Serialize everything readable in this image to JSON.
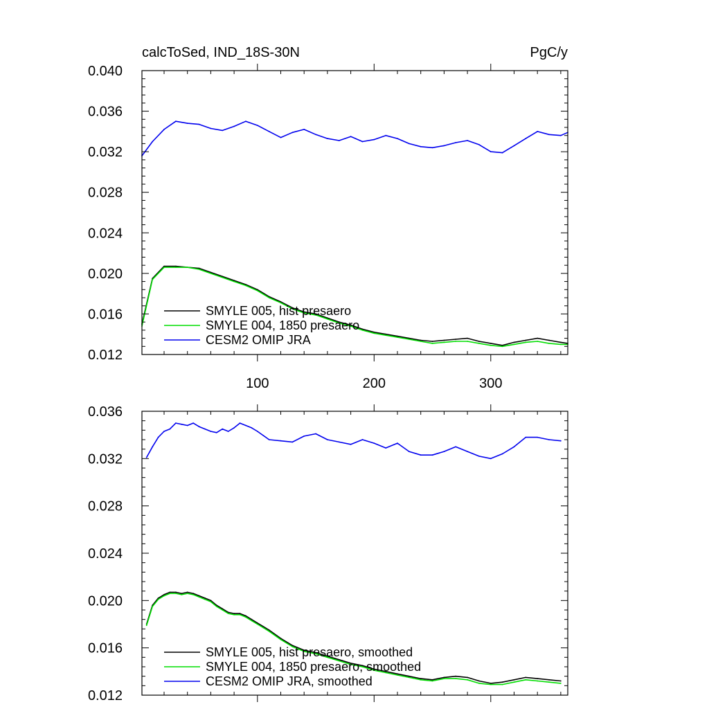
{
  "header": {
    "left_title": "calcToSed, IND_18S-30N",
    "right_title": "PgC/y"
  },
  "colors": {
    "hist": "#000000",
    "p1850": "#00dd00",
    "omip": "#0000ee"
  },
  "chart_data": [
    {
      "type": "line",
      "panel": "raw",
      "xlim": [
        1,
        366
      ],
      "ylim": [
        0.012,
        0.04
      ],
      "x_ticks": [
        100,
        200,
        300
      ],
      "x_tick_labels": [
        "100",
        "200",
        "300"
      ],
      "y_ticks": [
        0.012,
        0.016,
        0.02,
        0.024,
        0.028,
        0.032,
        0.036,
        0.04
      ],
      "y_tick_labels": [
        "0.012",
        "0.016",
        "0.020",
        "0.024",
        "0.028",
        "0.032",
        "0.036",
        "0.040"
      ],
      "grid": false,
      "legend_position": "bottom-left",
      "series": [
        {
          "name": "SMYLE 005, hist presaero",
          "color_key": "hist",
          "x": [
            1,
            10,
            20,
            30,
            40,
            50,
            60,
            70,
            80,
            90,
            100,
            110,
            120,
            130,
            140,
            150,
            160,
            170,
            180,
            190,
            200,
            210,
            220,
            230,
            240,
            250,
            260,
            270,
            280,
            290,
            300,
            310,
            320,
            330,
            340,
            350,
            360,
            366
          ],
          "y": [
            0.015,
            0.0195,
            0.0207,
            0.0207,
            0.0206,
            0.0205,
            0.0201,
            0.0197,
            0.0193,
            0.0189,
            0.0184,
            0.0177,
            0.0172,
            0.0166,
            0.0162,
            0.016,
            0.0156,
            0.0152,
            0.0149,
            0.0145,
            0.0142,
            0.014,
            0.0138,
            0.0136,
            0.0134,
            0.0133,
            0.0134,
            0.0135,
            0.0136,
            0.0133,
            0.0131,
            0.0129,
            0.0132,
            0.0134,
            0.0136,
            0.0134,
            0.0132,
            0.0131
          ]
        },
        {
          "name": "SMYLE 004, 1850 presaero",
          "color_key": "p1850",
          "x": [
            1,
            10,
            20,
            30,
            40,
            50,
            60,
            70,
            80,
            90,
            100,
            110,
            120,
            130,
            140,
            150,
            160,
            170,
            180,
            190,
            200,
            210,
            220,
            230,
            240,
            250,
            260,
            270,
            280,
            290,
            300,
            310,
            320,
            330,
            340,
            350,
            360,
            366
          ],
          "y": [
            0.0148,
            0.0194,
            0.0206,
            0.0206,
            0.0206,
            0.0204,
            0.02,
            0.0196,
            0.0192,
            0.0188,
            0.0183,
            0.0176,
            0.0171,
            0.0165,
            0.0161,
            0.0159,
            0.0155,
            0.0151,
            0.0148,
            0.0144,
            0.0141,
            0.0139,
            0.0137,
            0.0135,
            0.0133,
            0.0131,
            0.0132,
            0.0133,
            0.0133,
            0.0131,
            0.0129,
            0.0128,
            0.013,
            0.0132,
            0.0133,
            0.0131,
            0.013,
            0.013
          ]
        },
        {
          "name": "CESM2 OMIP JRA",
          "color_key": "omip",
          "x": [
            1,
            10,
            20,
            30,
            40,
            50,
            60,
            70,
            80,
            90,
            100,
            110,
            120,
            130,
            140,
            150,
            160,
            170,
            180,
            190,
            200,
            210,
            220,
            230,
            240,
            250,
            260,
            270,
            280,
            290,
            300,
            310,
            320,
            330,
            340,
            350,
            360,
            366
          ],
          "y": [
            0.0316,
            0.033,
            0.0342,
            0.035,
            0.0348,
            0.0347,
            0.0343,
            0.0341,
            0.0345,
            0.035,
            0.0346,
            0.034,
            0.0334,
            0.0339,
            0.0342,
            0.0337,
            0.0333,
            0.0331,
            0.0335,
            0.033,
            0.0332,
            0.0336,
            0.0333,
            0.0328,
            0.0325,
            0.0324,
            0.0326,
            0.0329,
            0.0331,
            0.0327,
            0.032,
            0.0319,
            0.0326,
            0.0333,
            0.034,
            0.0337,
            0.0336,
            0.0339
          ]
        }
      ]
    },
    {
      "type": "line",
      "panel": "smoothed",
      "xlim": [
        1,
        366
      ],
      "ylim": [
        0.012,
        0.036
      ],
      "x_ticks": [
        100,
        200,
        300
      ],
      "x_tick_labels": [],
      "y_ticks": [
        0.012,
        0.016,
        0.02,
        0.024,
        0.028,
        0.032,
        0.036
      ],
      "y_tick_labels": [
        "0.012",
        "0.016",
        "0.020",
        "0.024",
        "0.028",
        "0.032",
        "0.036"
      ],
      "grid": false,
      "legend_position": "bottom-left",
      "series": [
        {
          "name": "SMYLE 005, hist presaero, smoothed",
          "color_key": "hist",
          "x": [
            5,
            10,
            15,
            20,
            25,
            30,
            35,
            40,
            45,
            50,
            55,
            60,
            65,
            70,
            75,
            80,
            85,
            90,
            95,
            100,
            110,
            120,
            130,
            140,
            150,
            160,
            170,
            180,
            190,
            200,
            210,
            220,
            230,
            240,
            250,
            260,
            270,
            280,
            290,
            300,
            310,
            320,
            330,
            340,
            350,
            360
          ],
          "y": [
            0.018,
            0.0196,
            0.0202,
            0.0205,
            0.0207,
            0.0207,
            0.0206,
            0.0207,
            0.0206,
            0.0204,
            0.0202,
            0.02,
            0.0196,
            0.0193,
            0.019,
            0.0189,
            0.0189,
            0.0187,
            0.0184,
            0.0181,
            0.0175,
            0.0168,
            0.0162,
            0.0158,
            0.0156,
            0.0153,
            0.015,
            0.0147,
            0.0145,
            0.0142,
            0.014,
            0.0138,
            0.0136,
            0.0134,
            0.0133,
            0.0135,
            0.0136,
            0.0135,
            0.0132,
            0.013,
            0.0131,
            0.0133,
            0.0135,
            0.0134,
            0.0133,
            0.0132
          ]
        },
        {
          "name": "SMYLE 004, 1850 presaero, smoothed",
          "color_key": "p1850",
          "x": [
            5,
            10,
            15,
            20,
            25,
            30,
            35,
            40,
            45,
            50,
            55,
            60,
            65,
            70,
            75,
            80,
            85,
            90,
            95,
            100,
            110,
            120,
            130,
            140,
            150,
            160,
            170,
            180,
            190,
            200,
            210,
            220,
            230,
            240,
            250,
            260,
            270,
            280,
            290,
            300,
            310,
            320,
            330,
            340,
            350,
            360
          ],
          "y": [
            0.0179,
            0.0195,
            0.0201,
            0.0204,
            0.0206,
            0.0206,
            0.0205,
            0.0206,
            0.0205,
            0.0203,
            0.0201,
            0.0199,
            0.0195,
            0.0192,
            0.0189,
            0.0188,
            0.0188,
            0.0186,
            0.0183,
            0.018,
            0.0174,
            0.0167,
            0.0161,
            0.0157,
            0.0155,
            0.0152,
            0.0149,
            0.0146,
            0.0144,
            0.0141,
            0.0139,
            0.0137,
            0.0135,
            0.0133,
            0.0132,
            0.0134,
            0.0134,
            0.0133,
            0.013,
            0.0129,
            0.0129,
            0.0131,
            0.0133,
            0.0132,
            0.0131,
            0.013
          ]
        },
        {
          "name": "CESM2 OMIP JRA, smoothed",
          "color_key": "omip",
          "x": [
            5,
            10,
            15,
            20,
            25,
            30,
            35,
            40,
            45,
            50,
            55,
            60,
            65,
            70,
            75,
            80,
            85,
            90,
            95,
            100,
            110,
            120,
            130,
            140,
            150,
            160,
            170,
            180,
            190,
            200,
            210,
            220,
            230,
            240,
            250,
            260,
            270,
            280,
            290,
            300,
            310,
            320,
            330,
            340,
            350,
            360
          ],
          "y": [
            0.0321,
            0.033,
            0.0338,
            0.0343,
            0.0345,
            0.035,
            0.0349,
            0.0348,
            0.035,
            0.0347,
            0.0345,
            0.0343,
            0.0342,
            0.0345,
            0.0343,
            0.0346,
            0.035,
            0.0348,
            0.0346,
            0.0343,
            0.0336,
            0.0335,
            0.0334,
            0.0339,
            0.0341,
            0.0336,
            0.0334,
            0.0332,
            0.0336,
            0.0333,
            0.0329,
            0.0333,
            0.0326,
            0.0323,
            0.0323,
            0.0326,
            0.033,
            0.0326,
            0.0322,
            0.032,
            0.0324,
            0.033,
            0.0338,
            0.0338,
            0.0336,
            0.0335
          ]
        }
      ]
    }
  ]
}
